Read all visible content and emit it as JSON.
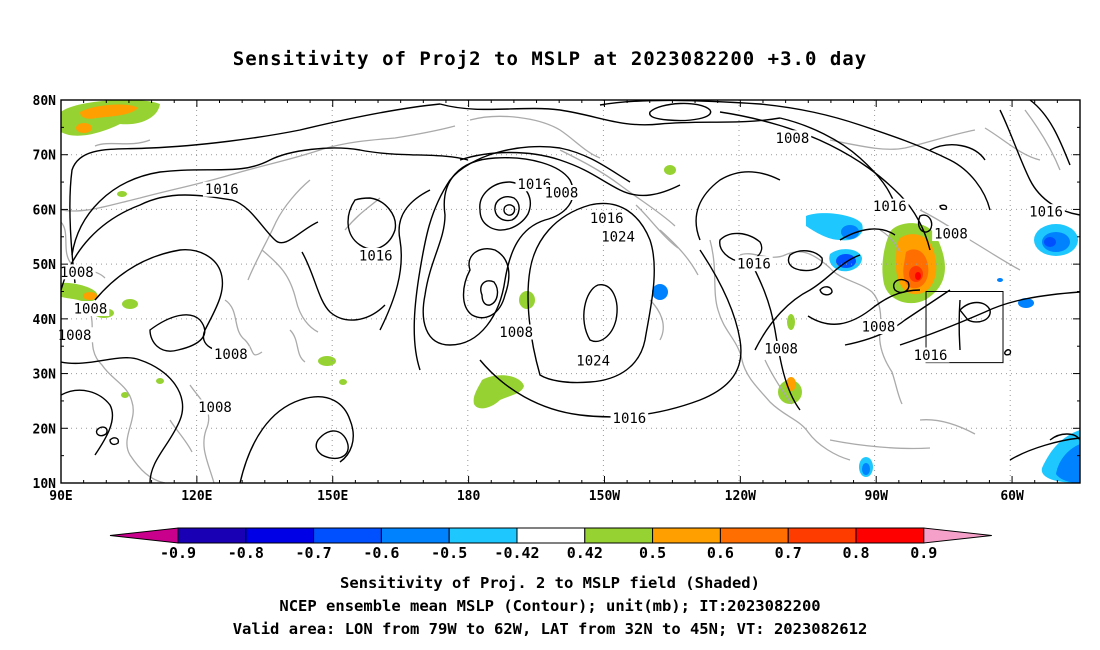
{
  "title": "Sensitivity of Proj2 to MSLP at 2023082200 +3.0 day",
  "map": {
    "lon_labels": [
      {
        "lon": 90,
        "text": "90E"
      },
      {
        "lon": 120,
        "text": "120E"
      },
      {
        "lon": 150,
        "text": "150E"
      },
      {
        "lon": 180,
        "text": "180"
      },
      {
        "lon": 210,
        "text": "150W"
      },
      {
        "lon": 240,
        "text": "120W"
      },
      {
        "lon": 270,
        "text": "90W"
      },
      {
        "lon": 300,
        "text": "60W"
      }
    ],
    "lat_labels": [
      {
        "lat": 80,
        "text": "80N"
      },
      {
        "lat": 70,
        "text": "70N"
      },
      {
        "lat": 60,
        "text": "60N"
      },
      {
        "lat": 50,
        "text": "50N"
      },
      {
        "lat": 40,
        "text": "40N"
      },
      {
        "lat": 30,
        "text": "30N"
      },
      {
        "lat": 20,
        "text": "20N"
      },
      {
        "lat": 10,
        "text": "10N"
      }
    ],
    "contour_labels": [
      {
        "lon": 125.5,
        "lat": 63.6,
        "text": "1016"
      },
      {
        "lon": 194.5,
        "lat": 64.6,
        "text": "1016"
      },
      {
        "lon": 200.5,
        "lat": 63.0,
        "text": "1008"
      },
      {
        "lon": 210.5,
        "lat": 58.3,
        "text": "1016"
      },
      {
        "lon": 213.0,
        "lat": 55.0,
        "text": "1024"
      },
      {
        "lon": 251.5,
        "lat": 73.0,
        "text": "1008"
      },
      {
        "lon": 159.5,
        "lat": 51.5,
        "text": "1016"
      },
      {
        "lon": 93.5,
        "lat": 48.5,
        "text": "1008"
      },
      {
        "lon": 96.5,
        "lat": 41.8,
        "text": "1008"
      },
      {
        "lon": 93.0,
        "lat": 37.0,
        "text": "1008"
      },
      {
        "lon": 127.5,
        "lat": 33.5,
        "text": "1008"
      },
      {
        "lon": 190.5,
        "lat": 37.5,
        "text": "1008"
      },
      {
        "lon": 207.5,
        "lat": 32.3,
        "text": "1024"
      },
      {
        "lon": 243.0,
        "lat": 50.0,
        "text": "1016"
      },
      {
        "lon": 215.5,
        "lat": 21.8,
        "text": "1016"
      },
      {
        "lon": 124.0,
        "lat": 23.8,
        "text": "1008"
      },
      {
        "lon": 249.0,
        "lat": 34.5,
        "text": "1008"
      },
      {
        "lon": 273.0,
        "lat": 60.5,
        "text": "1016"
      },
      {
        "lon": 286.5,
        "lat": 55.5,
        "text": "1008"
      },
      {
        "lon": 270.5,
        "lat": 38.5,
        "text": "1008"
      },
      {
        "lon": 282.0,
        "lat": 33.3,
        "text": "1016"
      },
      {
        "lon": 307.5,
        "lat": 59.5,
        "text": "1016"
      }
    ],
    "valid_area_box": {
      "lon_min": 281,
      "lon_max": 298,
      "lat_min": 32,
      "lat_max": 45
    }
  },
  "colorbar": {
    "colors": [
      "#c8008c",
      "#1a00b4",
      "#0000e6",
      "#0050ff",
      "#0082ff",
      "#1ec8ff",
      "#ffffff",
      "#96d232",
      "#ff9f00",
      "#ff6e00",
      "#ff3c00",
      "#ff0000",
      "#f5a0c8"
    ],
    "labels": [
      "-0.9",
      "-0.8",
      "-0.7",
      "-0.6",
      "-0.5",
      "-0.42",
      "0.42",
      "0.5",
      "0.6",
      "0.7",
      "0.8",
      "0.9"
    ]
  },
  "footer": {
    "line1": "Sensitivity of Proj. 2 to MSLP field (Shaded)",
    "line2": "NCEP ensemble mean MSLP (Contour); unit(mb); IT:2023082200",
    "line3": "Valid area: LON from 79W to 62W, LAT from 32N to 45N; VT: 2023082612"
  }
}
